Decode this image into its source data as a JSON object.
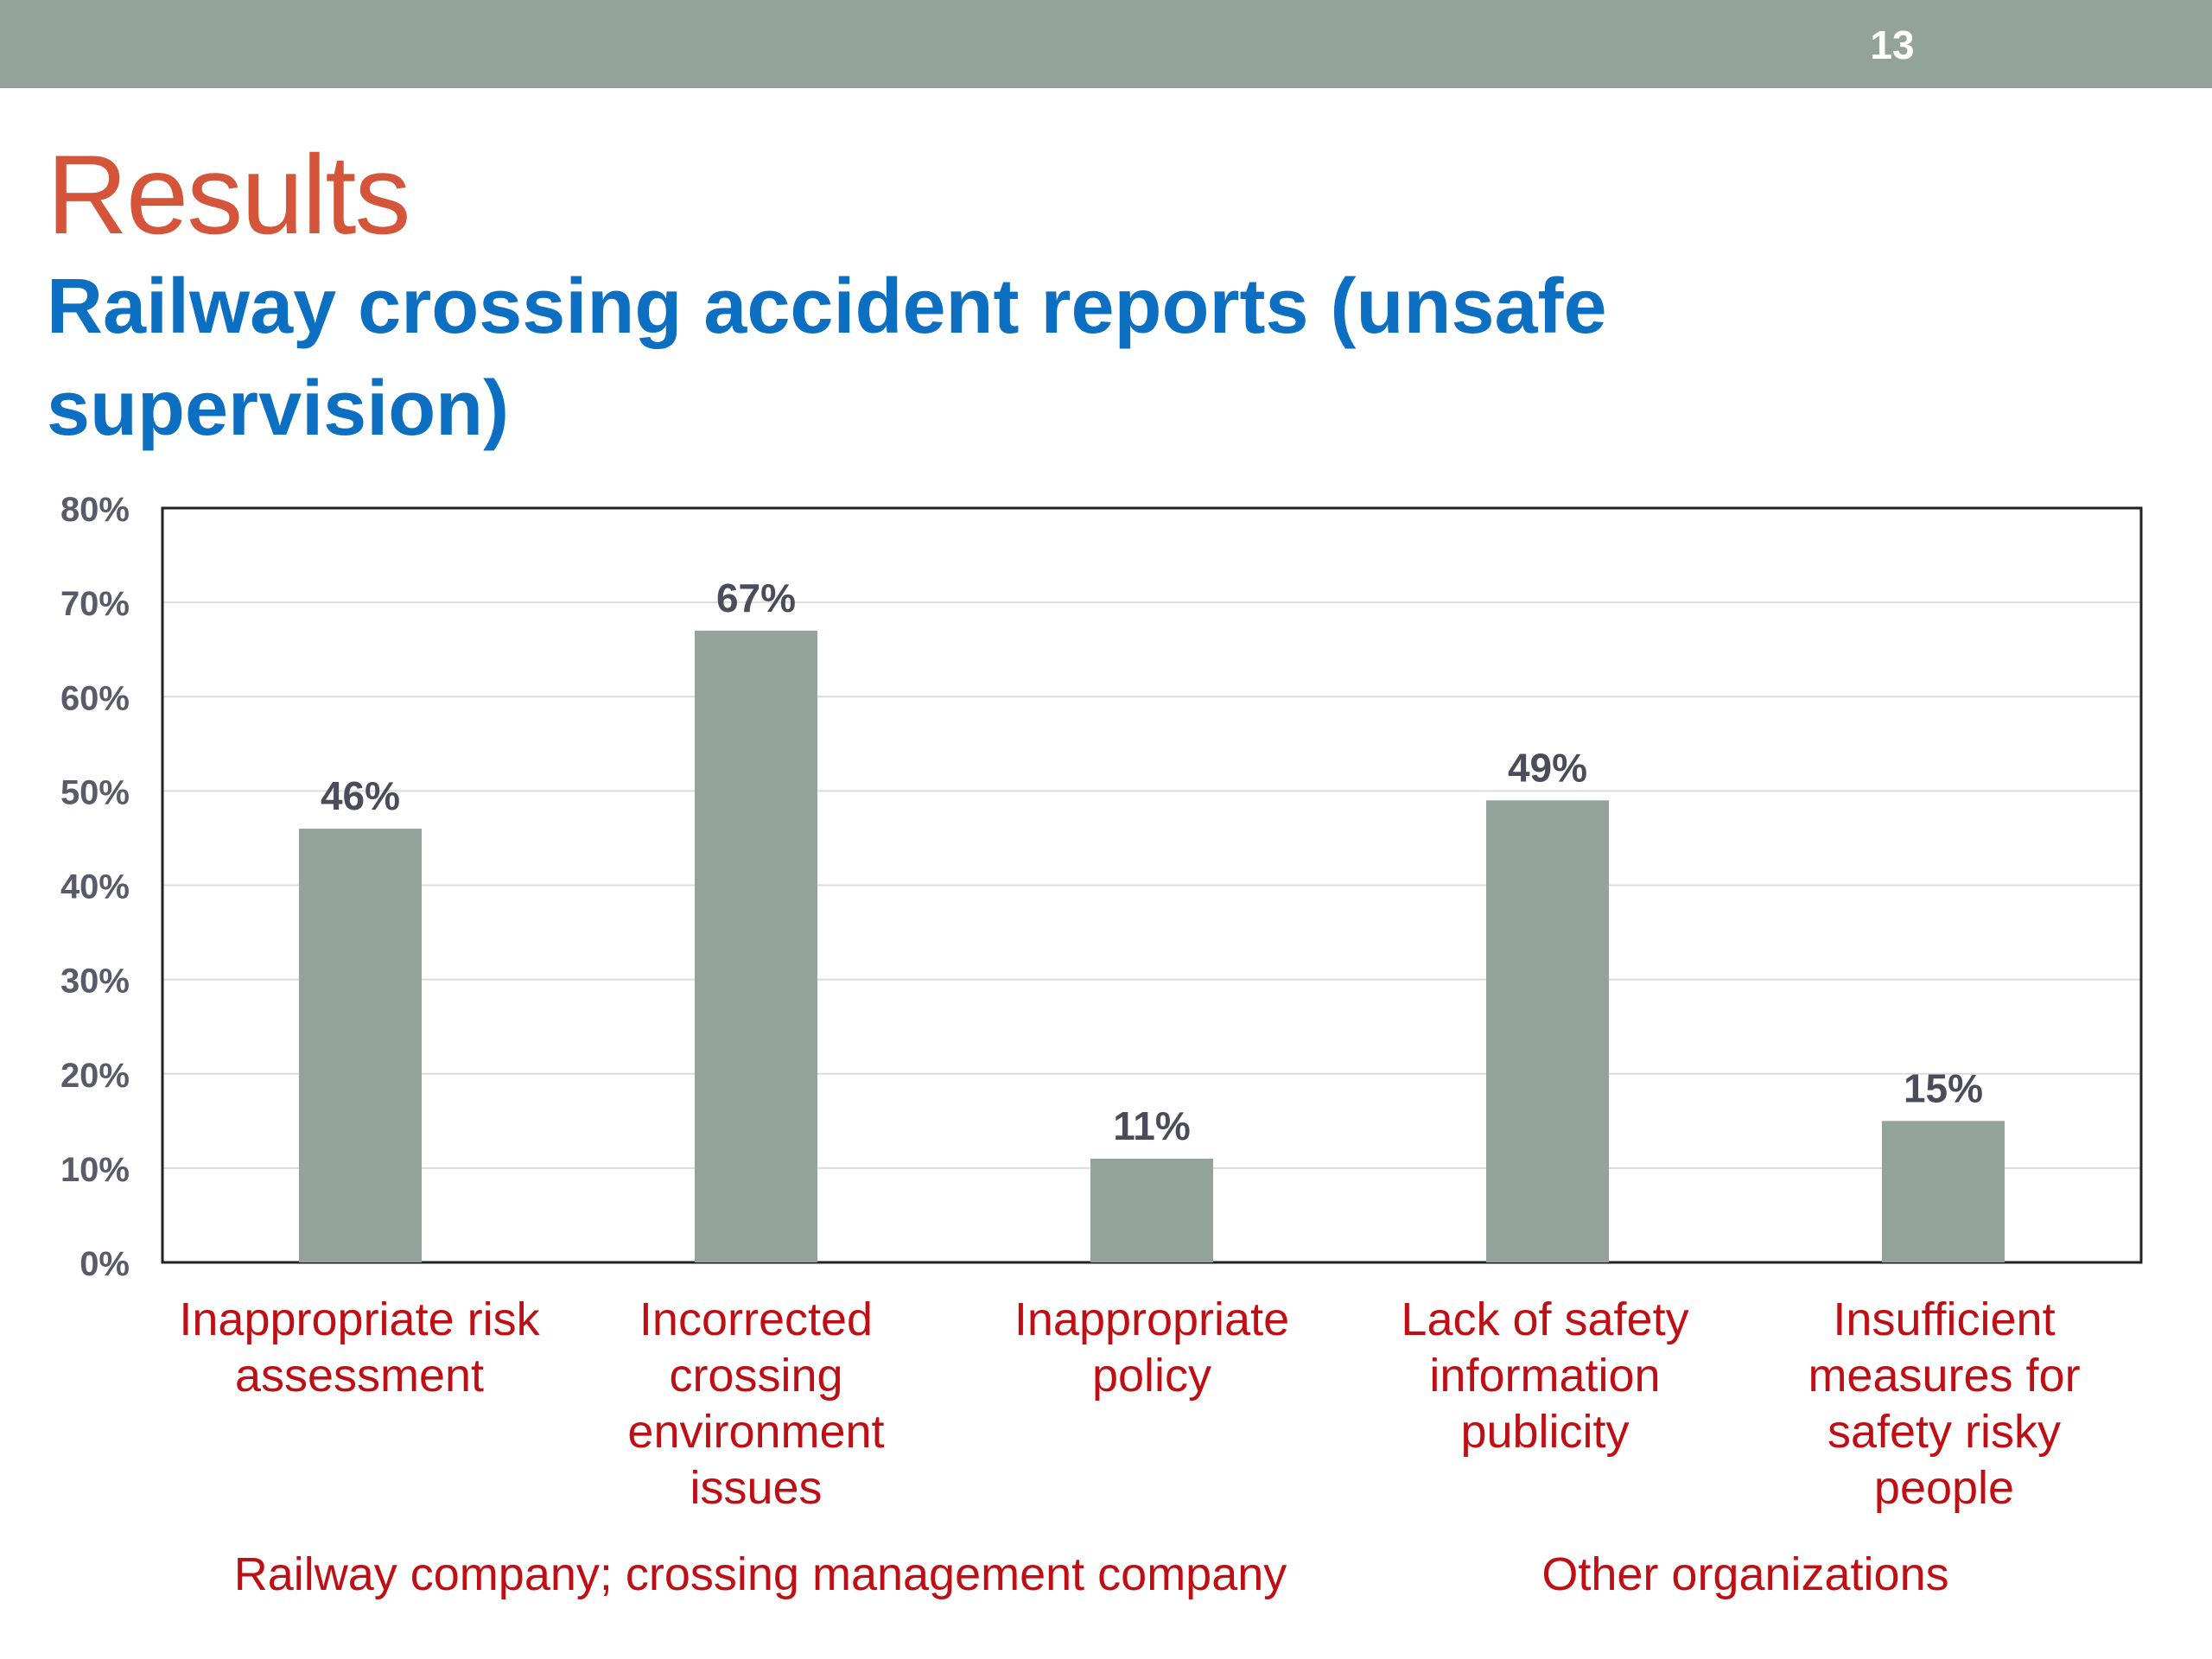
{
  "slide": {
    "number": "13",
    "title": "Results",
    "subtitle": "Railway crossing accident reports (unsafe supervision)"
  },
  "colors": {
    "header_bar": "#93a39b",
    "title": "#d4553a",
    "subtitle": "#0d6fc1",
    "bar": "#93a39b",
    "category_label": "#c00f14",
    "data_label": "#4b4b5c"
  },
  "chart_data": {
    "type": "bar",
    "categories": [
      "Inappropriate risk assessment",
      "Incorrected crossing environment issues",
      "Inappropriate policy",
      "Lack of safety information publicity",
      "Insufficient measures for safety risky people"
    ],
    "values": [
      46,
      67,
      11,
      49,
      15
    ],
    "data_labels": [
      "46%",
      "67%",
      "11%",
      "49%",
      "15%"
    ],
    "ylim": [
      0,
      80
    ],
    "y_ticks": [
      "0%",
      "10%",
      "20%",
      "30%",
      "40%",
      "50%",
      "60%",
      "70%",
      "80%"
    ],
    "grid": true,
    "legend": "none",
    "groups": [
      {
        "label": "Railway company; crossing management company",
        "categories": [
          0,
          1,
          2
        ]
      },
      {
        "label": "Other organizations",
        "categories": [
          3,
          4
        ]
      }
    ]
  }
}
